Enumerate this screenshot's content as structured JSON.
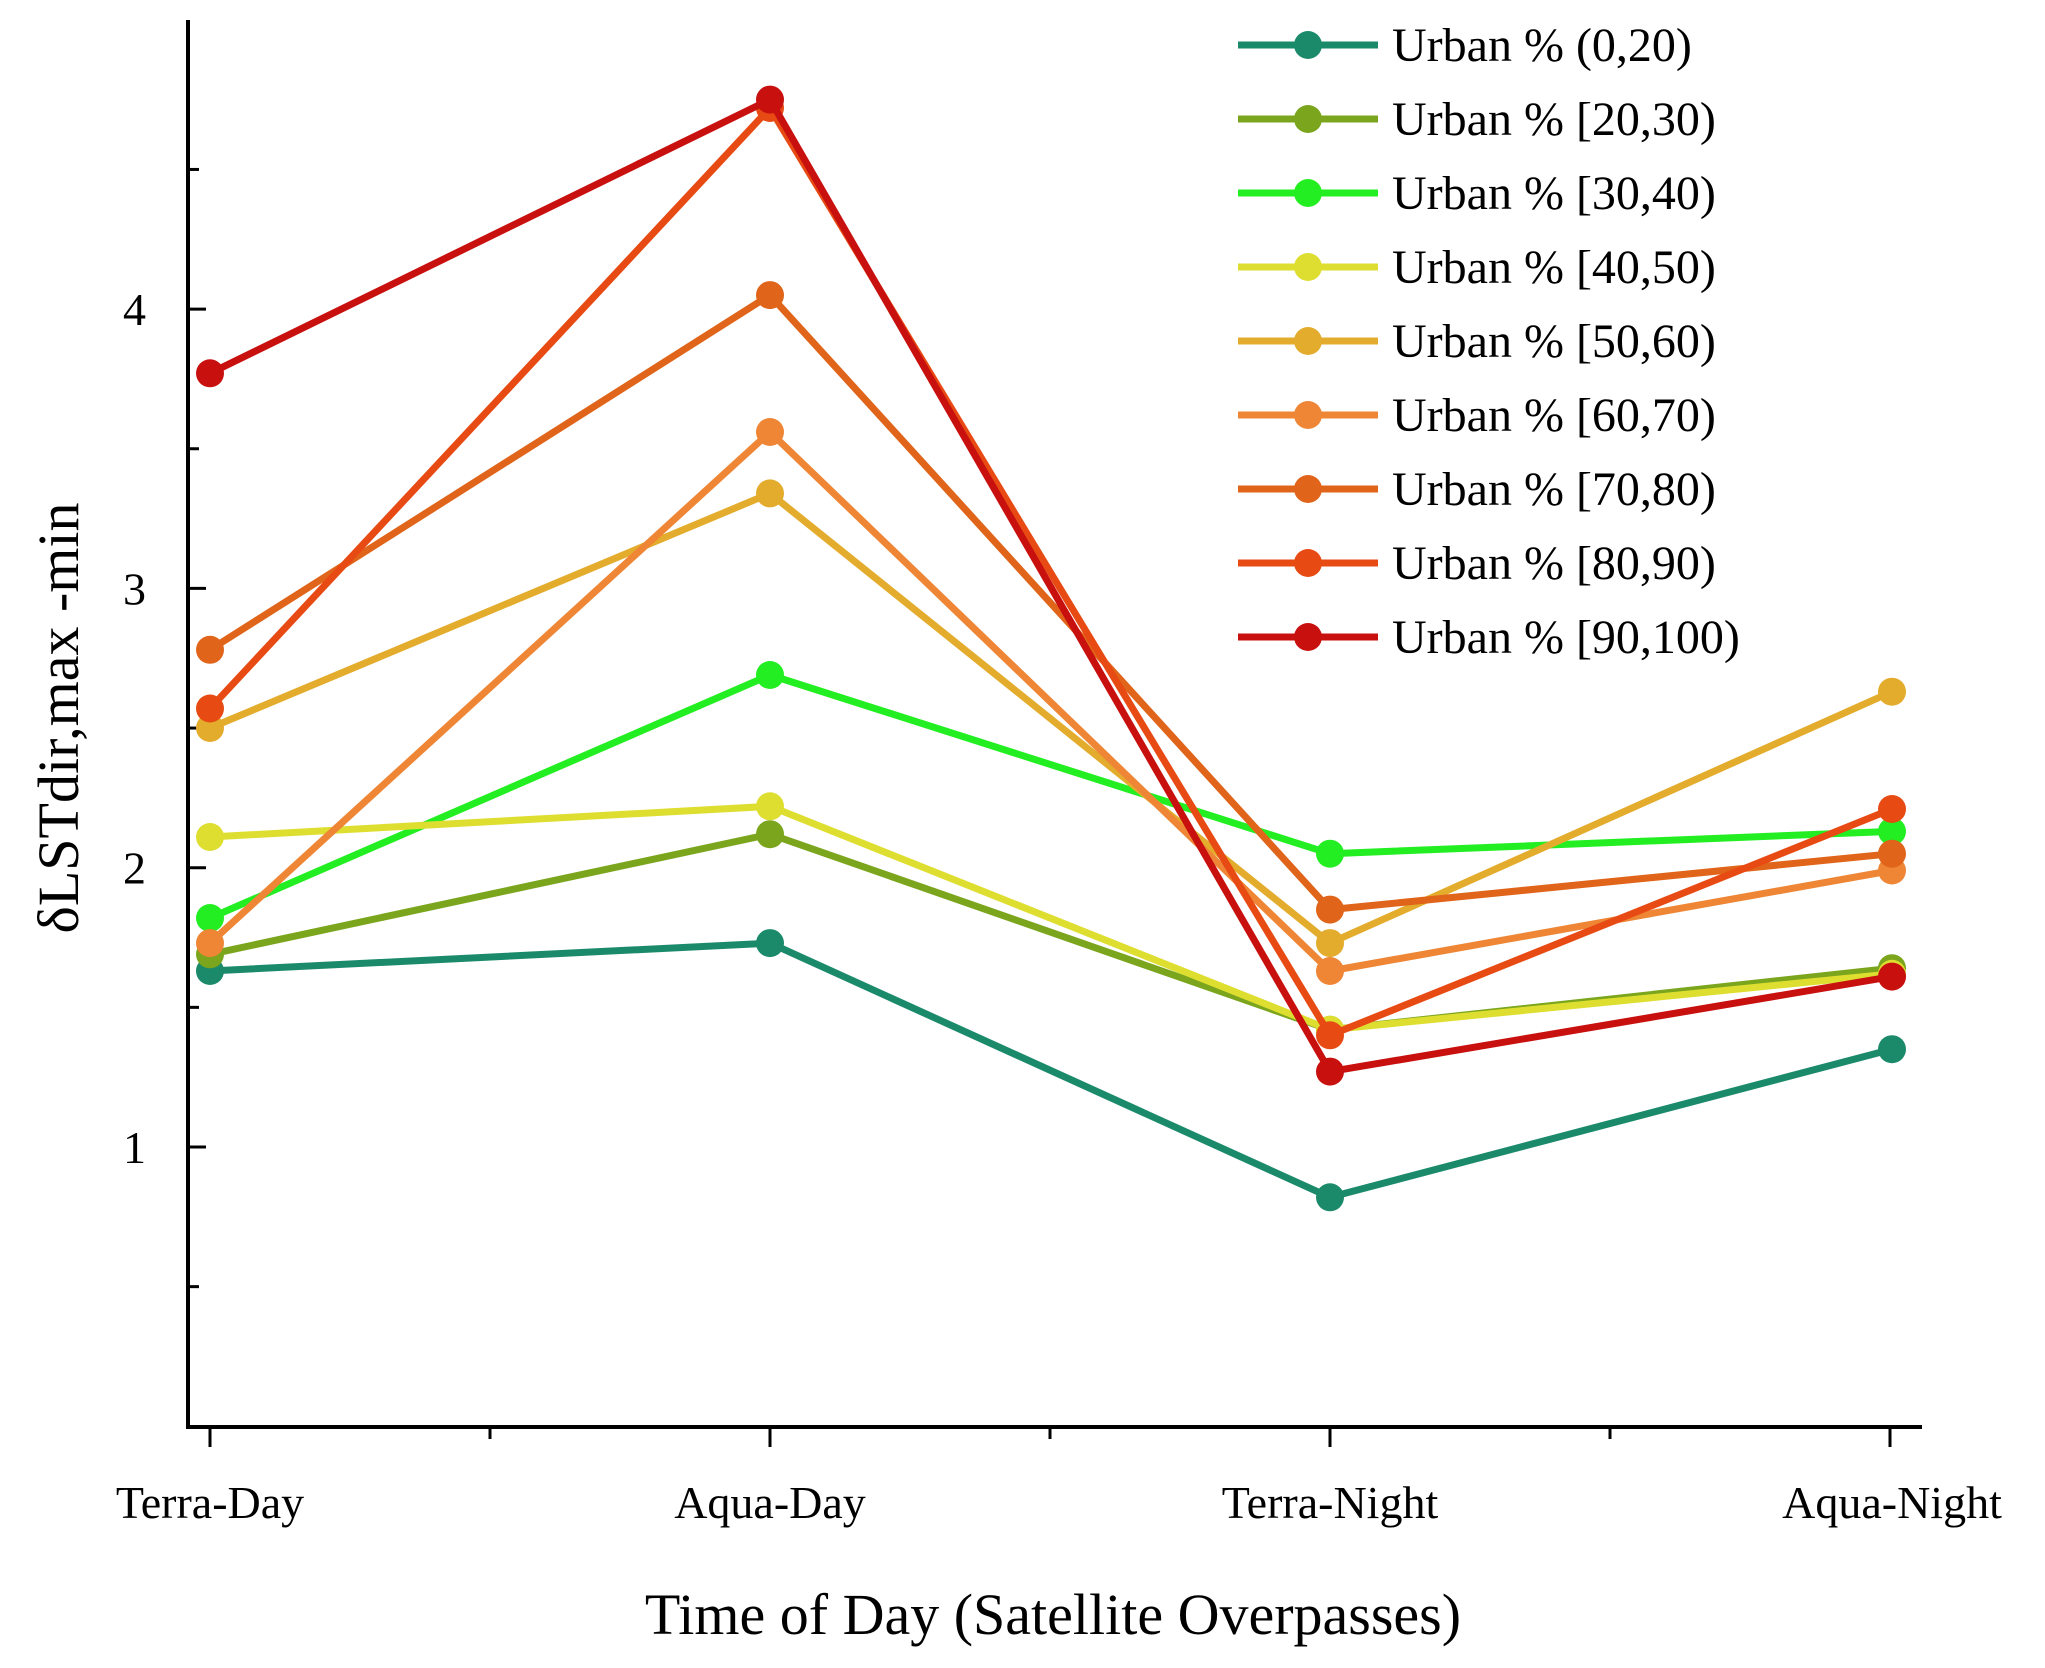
{
  "chart_data": {
    "type": "line",
    "title": "",
    "xlabel": "Time of Day (Satellite Overpasses)",
    "ylabel": "δLSTdir,max -min",
    "categories": [
      "Terra-Day",
      "Aqua-Day",
      "Terra-Night",
      "Aqua-Night"
    ],
    "ylim": [
      0,
      5
    ],
    "yticks": [
      1,
      2,
      3,
      4
    ],
    "ytick_labels": [
      "1",
      "2",
      "3",
      "4"
    ],
    "legend_position": "top-right",
    "grid": false,
    "series": [
      {
        "name": "Urban % (0,20)",
        "color": "#1b8a6b",
        "values": [
          1.63,
          1.73,
          0.82,
          1.35
        ]
      },
      {
        "name": "Urban % [20,30)",
        "color": "#7aa51c",
        "values": [
          1.69,
          2.12,
          1.42,
          1.64
        ]
      },
      {
        "name": "Urban % [30,40)",
        "color": "#22ee22",
        "values": [
          1.82,
          2.69,
          2.05,
          2.13
        ]
      },
      {
        "name": "Urban % [40,50)",
        "color": "#dede30",
        "values": [
          2.11,
          2.22,
          1.42,
          1.62
        ]
      },
      {
        "name": "Urban % [50,60)",
        "color": "#e3ac2c",
        "values": [
          2.5,
          3.34,
          1.73,
          2.63
        ]
      },
      {
        "name": "Urban % [60,70)",
        "color": "#ee8636",
        "values": [
          1.73,
          3.56,
          1.63,
          1.99
        ]
      },
      {
        "name": "Urban % [70,80)",
        "color": "#e06419",
        "values": [
          2.78,
          4.05,
          1.85,
          2.05
        ]
      },
      {
        "name": "Urban % [80,90)",
        "color": "#e84a14",
        "values": [
          2.57,
          4.72,
          1.4,
          2.21
        ]
      },
      {
        "name": "Urban % [90,100)",
        "color": "#c8100e",
        "values": [
          3.77,
          4.75,
          1.27,
          1.61
        ]
      }
    ]
  }
}
